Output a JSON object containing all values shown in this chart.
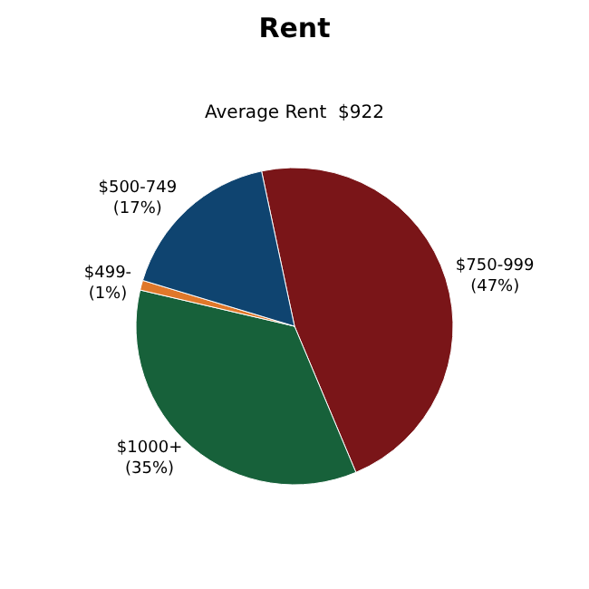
{
  "chart_data": {
    "type": "pie",
    "title": "Rent",
    "subtitle": "Average Rent  $922",
    "categories": [
      "$750-999",
      "$1000+",
      "$499-",
      "$500-749"
    ],
    "values": [
      47,
      35,
      1,
      17
    ],
    "value_labels": [
      "(47%)",
      "(35%)",
      "(1%)",
      "(17%)"
    ],
    "colors": [
      "#7a1518",
      "#17613a",
      "#e0782a",
      "#0f4470"
    ],
    "legend": false
  }
}
